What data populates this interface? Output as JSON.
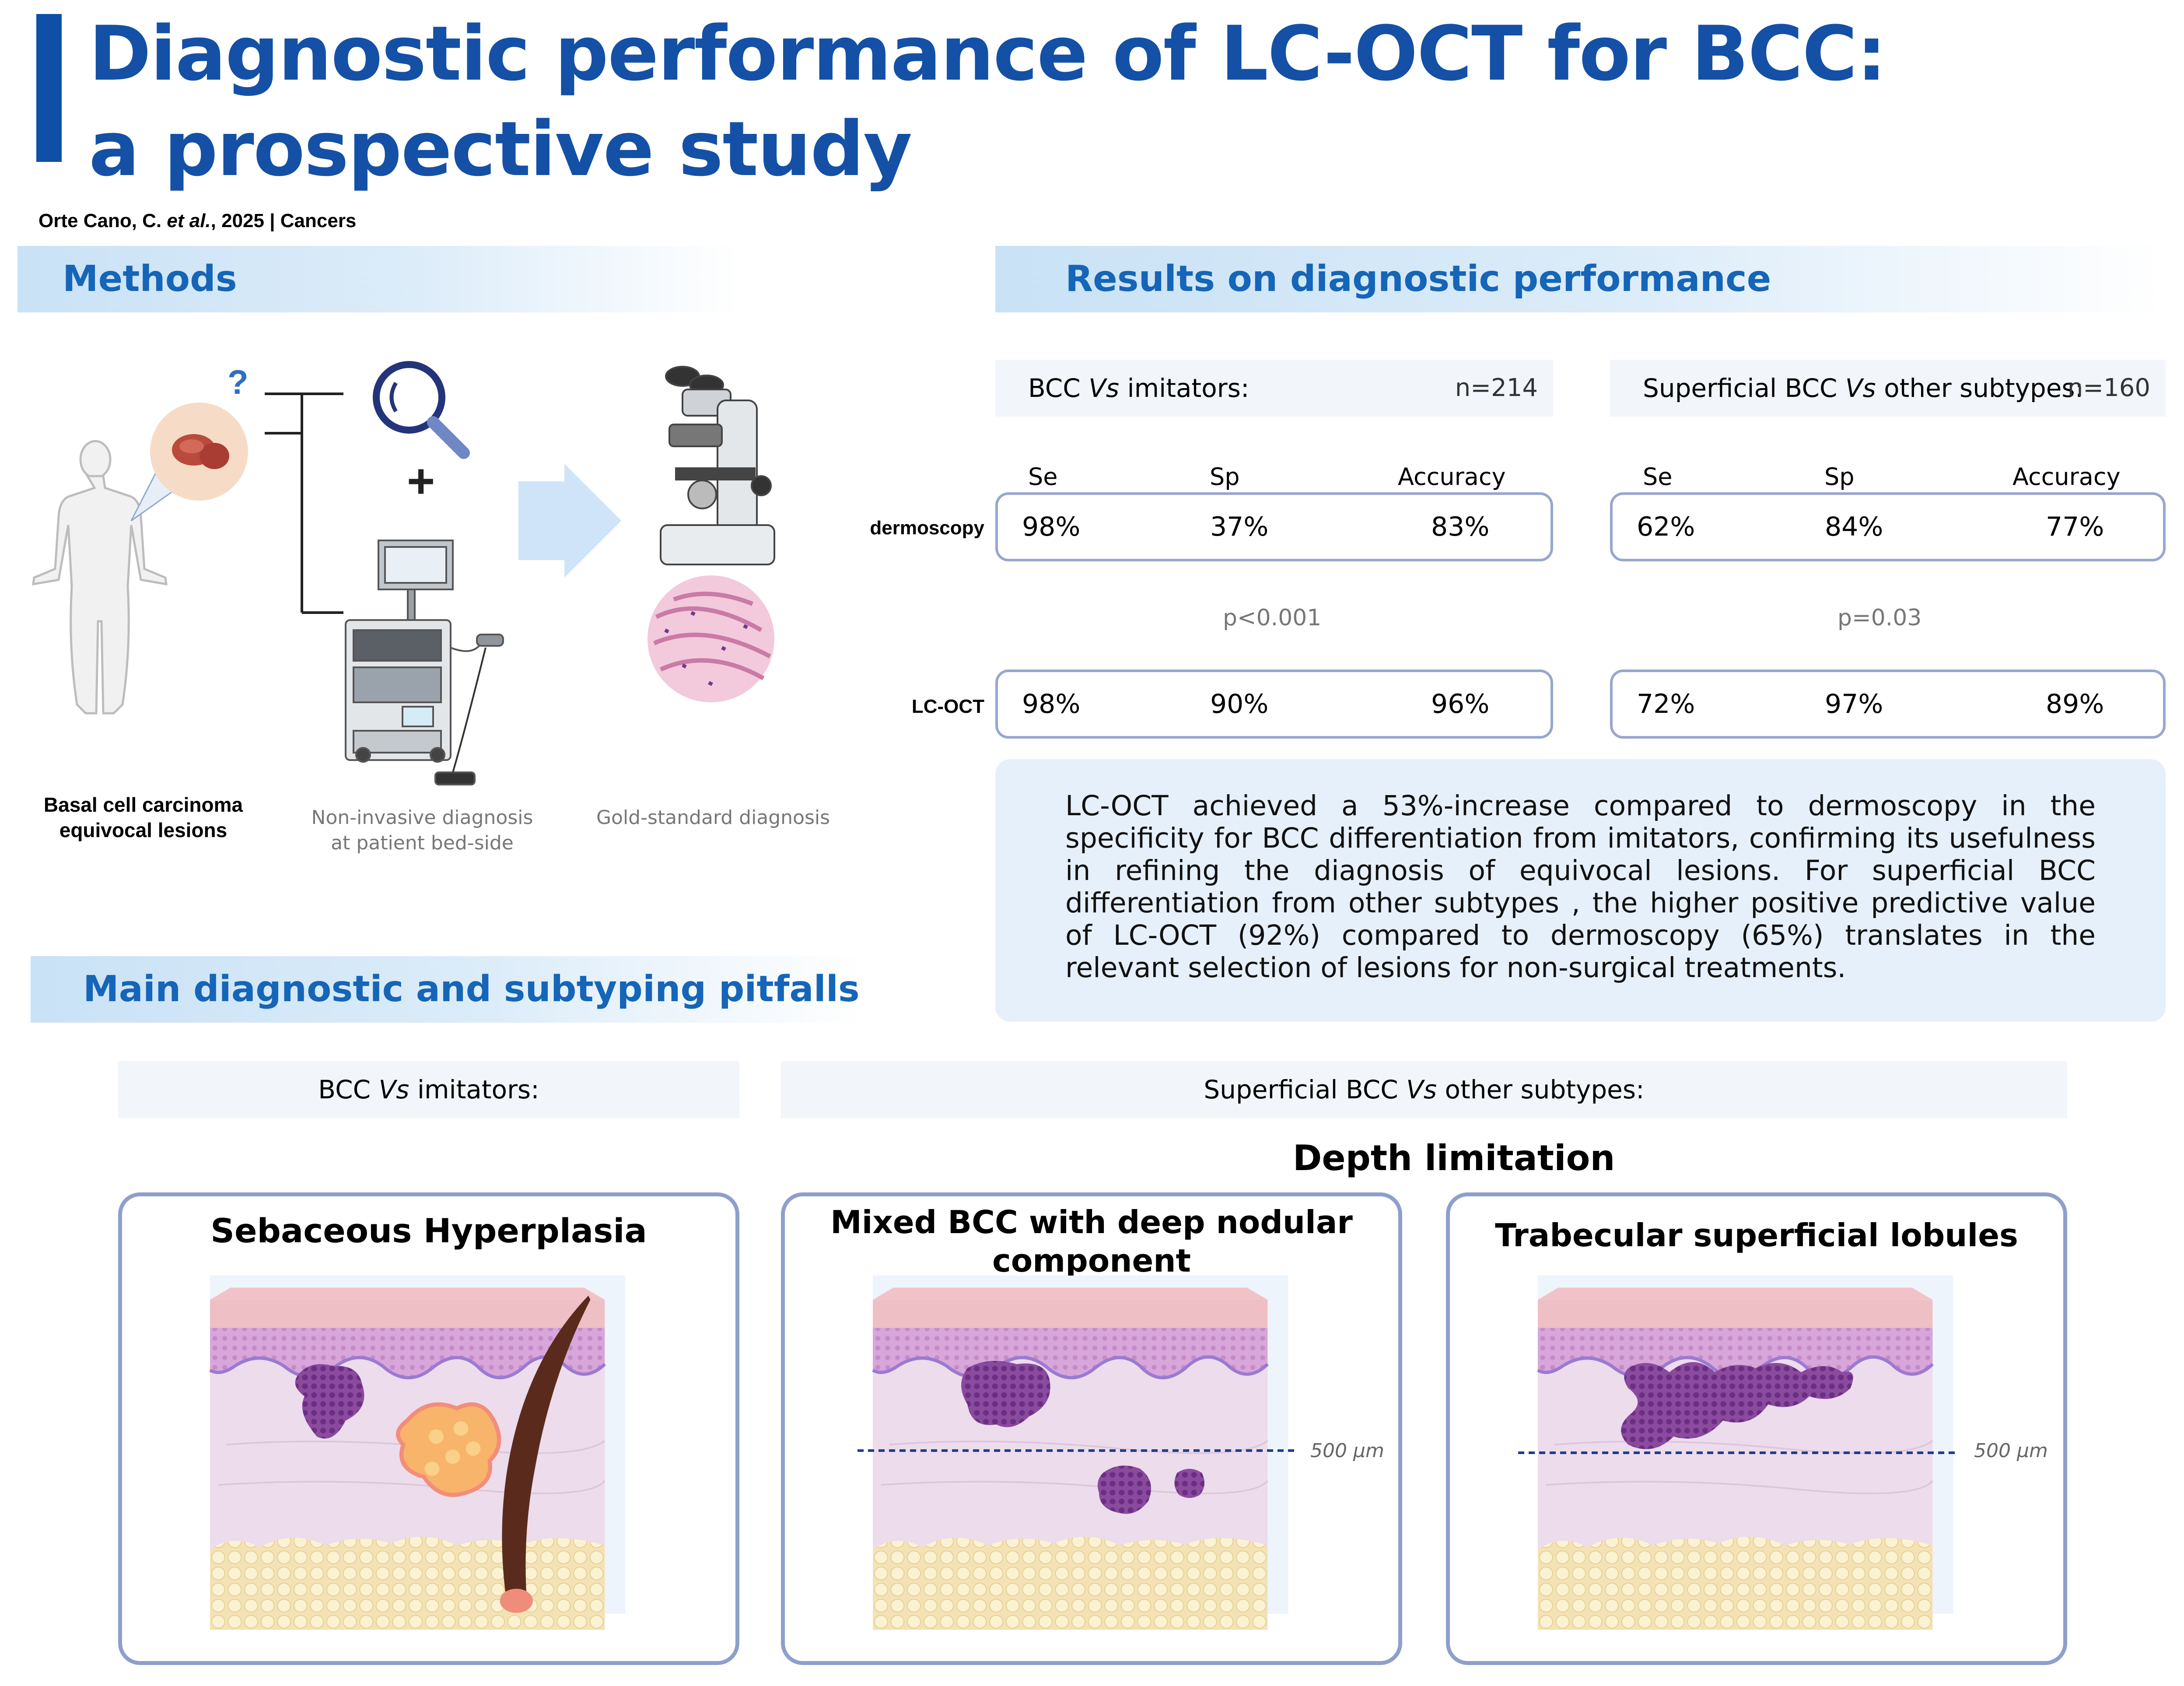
{
  "header": {
    "title_line1": "Diagnostic performance of LC-OCT for BCC:",
    "title_line2": "a prospective study",
    "citation_authors": "Orte Cano, C. ",
    "citation_etal": "et al.",
    "citation_rest": ", 2025 | Cancers"
  },
  "methods": {
    "heading": "Methods",
    "question_mark": "?",
    "plus": "+",
    "caption_patient_1": "Basal cell carcinoma",
    "caption_patient_2": "equivocal lesions",
    "caption_noninvasive_1": "Non-invasive diagnosis",
    "caption_noninvasive_2": "at patient bed-side",
    "caption_gold": "Gold-standard diagnosis"
  },
  "results": {
    "heading": "Results on diagnostic performance",
    "comparisons": [
      {
        "label_pre": "BCC ",
        "label_vs": "Vs",
        "label_post": " imitators:",
        "n": "n=214",
        "col_se": "Se",
        "col_sp": "Sp",
        "col_acc": "Accuracy",
        "dermoscopy": {
          "se": "98%",
          "sp": "37%",
          "acc": "83%"
        },
        "p": "p<0.001",
        "lcoct": {
          "se": "98%",
          "sp": "90%",
          "acc": "96%"
        }
      },
      {
        "label_pre": "Superficial BCC ",
        "label_vs": "Vs",
        "label_post": " other subtypes:",
        "n": "n=160",
        "col_se": "Se",
        "col_sp": "Sp",
        "col_acc": "Accuracy",
        "dermoscopy": {
          "se": "62%",
          "sp": "84%",
          "acc": "77%"
        },
        "p": "p=0.03",
        "lcoct": {
          "se": "72%",
          "sp": "97%",
          "acc": "89%"
        }
      }
    ],
    "row_dermoscopy": "dermoscopy",
    "row_lcoct": "LC-OCT",
    "summary": "LC-OCT achieved a 53%-increase compared to dermoscopy in the specificity for BCC differentiation from imitators, confirming its usefulness in refining the diagnosis of equivocal lesions. For superficial BCC differentiation from other subtypes , the higher positive predictive value of LC-OCT (92%) compared to dermoscopy (65%) translates in the relevant selection of lesions for non-surgical treatments."
  },
  "pitfalls": {
    "heading": "Main diagnostic and subtyping pitfalls",
    "left_pre": "BCC ",
    "left_vs": "Vs",
    "left_post": " imitators:",
    "right_pre": "Superficial BCC ",
    "right_vs": "Vs",
    "right_post": " other subtypes:",
    "depth_limitation": "Depth limitation",
    "panel1_title": "Sebaceous Hyperplasia",
    "panel2_title_1": "Mixed BCC with deep nodular",
    "panel2_title_2": "component",
    "panel3_title": "Trabecular superficial lobules",
    "depth_marker": "500 µm"
  },
  "colors": {
    "title_blue": "#1450a6",
    "heading_blue": "#1565b8",
    "box_border": "#98a7cf",
    "panel_border": "#8e9fcb",
    "summary_bg": "#e6f0fb"
  }
}
